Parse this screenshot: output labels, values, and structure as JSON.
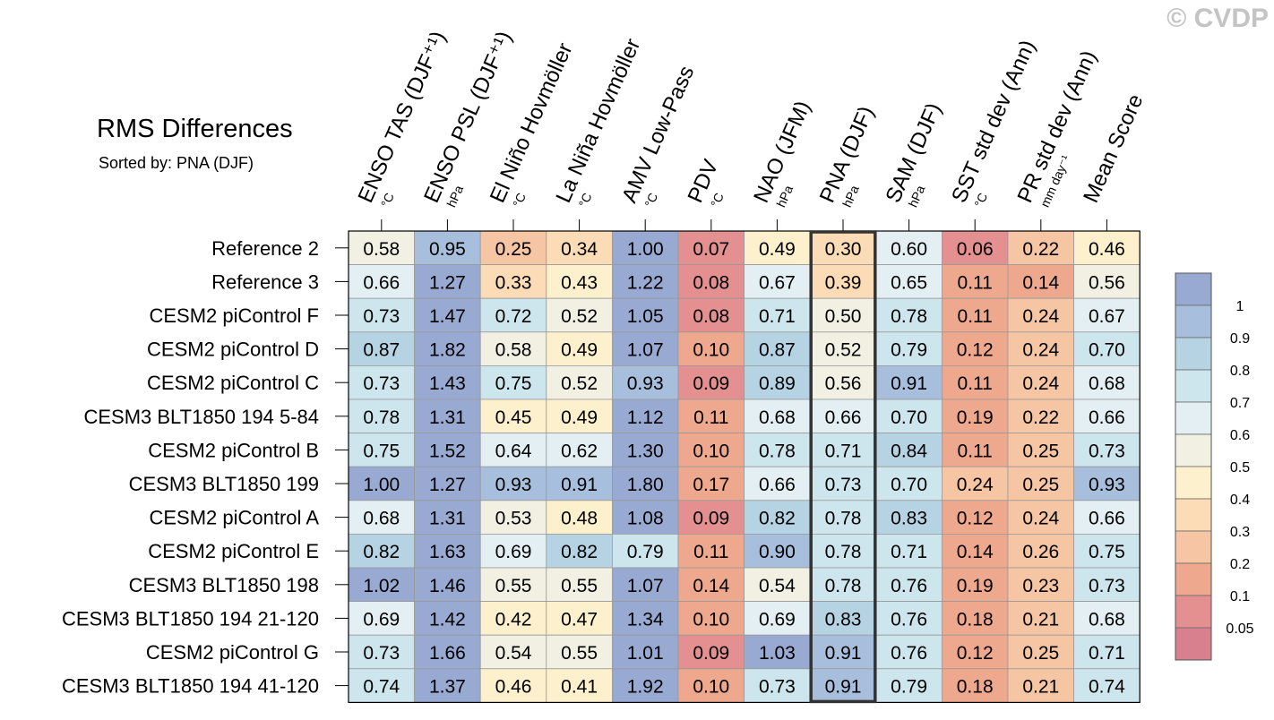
{
  "watermark": "© CVDP",
  "chart_data": {
    "type": "heatmap",
    "title": "RMS Differences",
    "subtitle": "Sorted by: PNA (DJF)",
    "sorted_by": "PNA (DJF)",
    "highlight_column": 7,
    "columns": [
      {
        "name": "ENSO TAS (DJF⁺¹)",
        "unit": "°C"
      },
      {
        "name": "ENSO PSL (DJF⁺¹)",
        "unit": "hPa"
      },
      {
        "name": "El Niño Hovmöller",
        "unit": "°C"
      },
      {
        "name": "La Niña Hovmöller",
        "unit": "°C"
      },
      {
        "name": "AMV Low-Pass",
        "unit": "°C"
      },
      {
        "name": "PDV",
        "unit": "°C"
      },
      {
        "name": "NAO (JFM)",
        "unit": "hPa"
      },
      {
        "name": "PNA (DJF)",
        "unit": "hPa"
      },
      {
        "name": "SAM (DJF)",
        "unit": "hPa"
      },
      {
        "name": "SST std dev (Ann)",
        "unit": "°C"
      },
      {
        "name": "PR std dev (Ann)",
        "unit": "mm day⁻¹"
      },
      {
        "name": "Mean Score",
        "unit": ""
      }
    ],
    "rows": [
      {
        "label": "Reference 2",
        "values": [
          "0.58",
          "0.95",
          "0.25",
          "0.34",
          "1.00",
          "0.07",
          "0.49",
          "0.30",
          "0.60",
          "0.06",
          "0.22",
          "0.46"
        ]
      },
      {
        "label": "Reference 3",
        "values": [
          "0.66",
          "1.27",
          "0.33",
          "0.43",
          "1.22",
          "0.08",
          "0.67",
          "0.39",
          "0.65",
          "0.11",
          "0.14",
          "0.56"
        ]
      },
      {
        "label": "CESM2 piControl F",
        "values": [
          "0.73",
          "1.47",
          "0.72",
          "0.52",
          "1.05",
          "0.08",
          "0.71",
          "0.50",
          "0.78",
          "0.11",
          "0.24",
          "0.67"
        ]
      },
      {
        "label": "CESM2 piControl D",
        "values": [
          "0.87",
          "1.82",
          "0.58",
          "0.49",
          "1.07",
          "0.10",
          "0.87",
          "0.52",
          "0.79",
          "0.12",
          "0.24",
          "0.70"
        ]
      },
      {
        "label": "CESM2 piControl C",
        "values": [
          "0.73",
          "1.43",
          "0.75",
          "0.52",
          "0.93",
          "0.09",
          "0.89",
          "0.56",
          "0.91",
          "0.11",
          "0.24",
          "0.68"
        ]
      },
      {
        "label": "CESM3 BLT1850 194 5-84",
        "values": [
          "0.78",
          "1.31",
          "0.45",
          "0.49",
          "1.12",
          "0.11",
          "0.68",
          "0.66",
          "0.70",
          "0.19",
          "0.22",
          "0.66"
        ]
      },
      {
        "label": "CESM2 piControl B",
        "values": [
          "0.75",
          "1.52",
          "0.64",
          "0.62",
          "1.30",
          "0.10",
          "0.78",
          "0.71",
          "0.84",
          "0.11",
          "0.25",
          "0.73"
        ]
      },
      {
        "label": "CESM3 BLT1850 199",
        "values": [
          "1.00",
          "1.27",
          "0.93",
          "0.91",
          "1.80",
          "0.17",
          "0.66",
          "0.73",
          "0.70",
          "0.24",
          "0.25",
          "0.93"
        ]
      },
      {
        "label": "CESM2 piControl A",
        "values": [
          "0.68",
          "1.31",
          "0.53",
          "0.48",
          "1.08",
          "0.09",
          "0.82",
          "0.78",
          "0.83",
          "0.12",
          "0.24",
          "0.66"
        ]
      },
      {
        "label": "CESM2 piControl E",
        "values": [
          "0.82",
          "1.63",
          "0.69",
          "0.82",
          "0.79",
          "0.11",
          "0.90",
          "0.78",
          "0.71",
          "0.14",
          "0.26",
          "0.75"
        ]
      },
      {
        "label": "CESM3 BLT1850 198",
        "values": [
          "1.02",
          "1.46",
          "0.55",
          "0.55",
          "1.07",
          "0.14",
          "0.54",
          "0.78",
          "0.76",
          "0.19",
          "0.23",
          "0.73"
        ]
      },
      {
        "label": "CESM3 BLT1850 194 21-120",
        "values": [
          "0.69",
          "1.42",
          "0.42",
          "0.47",
          "1.34",
          "0.10",
          "0.69",
          "0.83",
          "0.76",
          "0.18",
          "0.21",
          "0.68"
        ]
      },
      {
        "label": "CESM2 piControl G",
        "values": [
          "0.73",
          "1.66",
          "0.54",
          "0.55",
          "1.01",
          "0.09",
          "1.03",
          "0.91",
          "0.76",
          "0.12",
          "0.25",
          "0.71"
        ]
      },
      {
        "label": "CESM3 BLT1850 194 41-120",
        "values": [
          "0.74",
          "1.37",
          "0.46",
          "0.41",
          "1.92",
          "0.10",
          "0.73",
          "0.91",
          "0.79",
          "0.18",
          "0.21",
          "0.74"
        ]
      }
    ],
    "colorbar": {
      "labels": [
        "1",
        "0.9",
        "0.8",
        "0.7",
        "0.6",
        "0.5",
        "0.4",
        "0.3",
        "0.2",
        "0.1",
        "0.05"
      ],
      "thresholds": [
        0.05,
        0.1,
        0.2,
        0.3,
        0.4,
        0.5,
        0.6,
        0.7,
        0.8,
        0.9,
        1
      ],
      "colors": [
        "#d9808f",
        "#e49090",
        "#eea88e",
        "#f6c5a3",
        "#fbdcb6",
        "#fdf0cc",
        "#f1f0e3",
        "#e3eff3",
        "#cde5ed",
        "#b6d3e3",
        "#a7bfdd",
        "#98a9d2"
      ]
    }
  }
}
